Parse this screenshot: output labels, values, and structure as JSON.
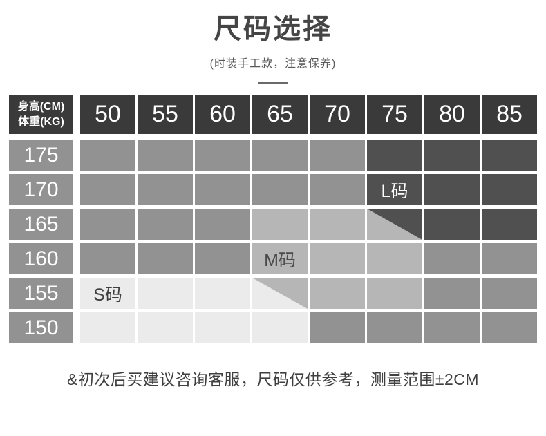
{
  "page": {
    "title": "尺码选择",
    "subtitle": "(时装手工款，注意保养)",
    "footnote": "&初次后买建议咨询客服，尺码仅供参考，测量范围±2CM"
  },
  "colors": {
    "header_bg": "#3a3a3a",
    "base_cell": "#929292",
    "s_zone": "#ebebeb",
    "m_zone": "#b6b6b6",
    "l_zone": "#505050",
    "gap": "#ffffff"
  },
  "table": {
    "corner": {
      "line1": "身高(CM)",
      "line2": "体重(KG)"
    },
    "size_labels": {
      "S": "S码",
      "M": "M码",
      "L": "L码"
    }
  },
  "chart_data": {
    "type": "heatmap",
    "title": "尺码选择",
    "x_axis_label": "体重(KG)",
    "y_axis_label": "身高(CM)",
    "x": [
      "50",
      "55",
      "60",
      "65",
      "70",
      "75",
      "80",
      "85"
    ],
    "rows": [
      {
        "height": "175",
        "cells": [
          "none",
          "none",
          "none",
          "none",
          "none",
          "L",
          "L",
          "L"
        ]
      },
      {
        "height": "170",
        "cells": [
          "none",
          "none",
          "none",
          "none",
          "none",
          "L:label",
          "L",
          "L"
        ]
      },
      {
        "height": "165",
        "cells": [
          "none",
          "none",
          "none",
          "M",
          "M",
          "M/L",
          "L",
          "L"
        ]
      },
      {
        "height": "160",
        "cells": [
          "none",
          "none",
          "none",
          "M:label",
          "M",
          "M",
          "none",
          "none"
        ]
      },
      {
        "height": "155",
        "cells": [
          "S:label",
          "S",
          "S",
          "S/M",
          "M",
          "M",
          "none",
          "none"
        ]
      },
      {
        "height": "150",
        "cells": [
          "S",
          "S",
          "S",
          "S",
          "none",
          "none",
          "none",
          "none"
        ]
      }
    ],
    "zone_names": {
      "S": "S码",
      "M": "M码",
      "L": "L码"
    },
    "legend_position": "in-cell-annotations",
    "grid": "white-gaps"
  }
}
